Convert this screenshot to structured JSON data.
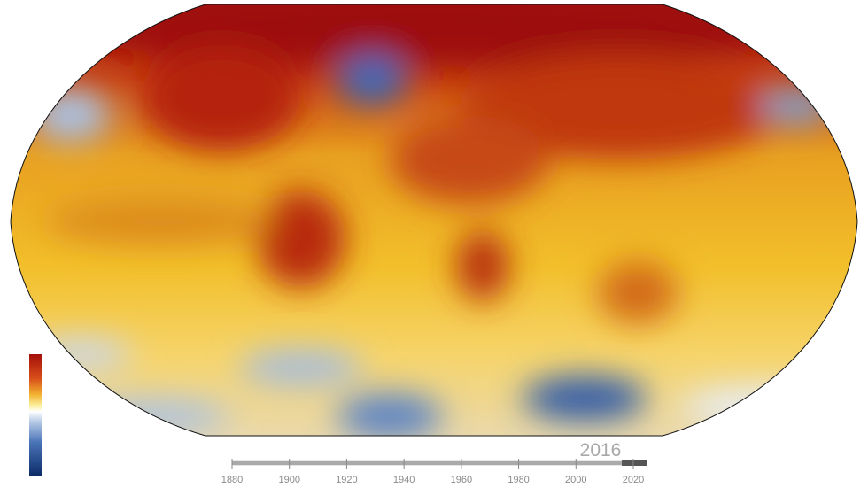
{
  "map": {
    "year": 2016,
    "timeline": {
      "xlim": [
        1880,
        2020
      ],
      "xticks": [
        1880,
        1900,
        1920,
        1940,
        1960,
        1980,
        2000,
        2020
      ]
    }
  }
}
